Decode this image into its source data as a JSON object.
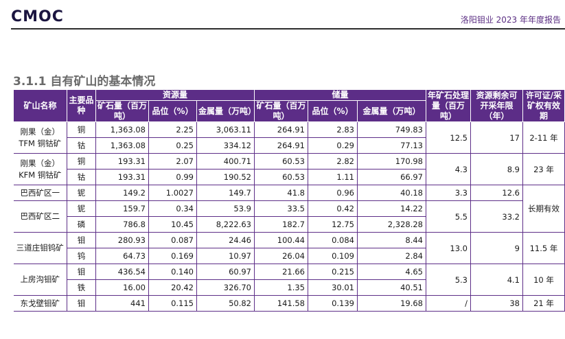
{
  "header": {
    "logo_text": "CMOC",
    "report_title": "洛阳钼业 2023 年年度报告"
  },
  "section": {
    "title": "3.1.1 自有矿山的基本情况"
  },
  "table": {
    "headers": {
      "mine_name": "矿山名称",
      "main_product": "主要品种",
      "resource_group": "资源量",
      "reserve_group": "储量",
      "annual_processing": "年矿石处理量（百万吨）",
      "remaining_life": "资源剩余可开采年限（年）",
      "license": "许可证/采矿权有效期",
      "ore": "矿石量（百万吨）",
      "grade": "品位（%）",
      "metal": "金属量（万吨）"
    },
    "mines": [
      {
        "name": "刚果（金）TFM 铜钴矿",
        "processing": "12.5",
        "life": "17",
        "license": "2-11 年",
        "rows": [
          {
            "product": "铜",
            "res_ore": "1,363.08",
            "res_grade": "2.25",
            "res_metal": "3,063.11",
            "rsv_ore": "264.91",
            "rsv_grade": "2.83",
            "rsv_metal": "749.83"
          },
          {
            "product": "钴",
            "res_ore": "1,363.08",
            "res_grade": "0.25",
            "res_metal": "334.12",
            "rsv_ore": "264.91",
            "rsv_grade": "0.29",
            "rsv_metal": "77.13"
          }
        ]
      },
      {
        "name": "刚果（金）KFM 铜钴矿",
        "processing": "4.3",
        "life": "8.9",
        "license": "23 年",
        "rows": [
          {
            "product": "铜",
            "res_ore": "193.31",
            "res_grade": "2.07",
            "res_metal": "400.71",
            "rsv_ore": "60.53",
            "rsv_grade": "2.82",
            "rsv_metal": "170.98"
          },
          {
            "product": "钴",
            "res_ore": "193.31",
            "res_grade": "0.99",
            "res_metal": "190.52",
            "rsv_ore": "60.53",
            "rsv_grade": "1.11",
            "rsv_metal": "66.97"
          }
        ]
      },
      {
        "name": "巴西矿区一",
        "processing": "3.3",
        "life": "12.6",
        "license": "长期有效",
        "rows": [
          {
            "product": "铌",
            "res_ore": "149.2",
            "res_grade": "1.0027",
            "res_metal": "149.7",
            "rsv_ore": "41.8",
            "rsv_grade": "0.96",
            "rsv_metal": "40.18"
          }
        ]
      },
      {
        "name": "巴西矿区二",
        "processing": "5.5",
        "life": "33.2",
        "rows": [
          {
            "product": "铌",
            "res_ore": "159.7",
            "res_grade": "0.34",
            "res_metal": "53.9",
            "rsv_ore": "33.5",
            "rsv_grade": "0.42",
            "rsv_metal": "14.22"
          },
          {
            "product": "磷",
            "res_ore": "786.8",
            "res_grade": "10.45",
            "res_metal": "8,222.63",
            "rsv_ore": "182.7",
            "rsv_grade": "12.75",
            "rsv_metal": "2,328.28"
          }
        ]
      },
      {
        "name": "三道庄钼钨矿",
        "processing": "13.0",
        "life": "9",
        "license": "11.5 年",
        "rows": [
          {
            "product": "钼",
            "res_ore": "280.93",
            "res_grade": "0.087",
            "res_metal": "24.46",
            "rsv_ore": "100.44",
            "rsv_grade": "0.084",
            "rsv_metal": "8.44"
          },
          {
            "product": "钨",
            "res_ore": "64.73",
            "res_grade": "0.169",
            "res_metal": "10.97",
            "rsv_ore": "26.04",
            "rsv_grade": "0.109",
            "rsv_metal": "2.84"
          }
        ]
      },
      {
        "name": "上房沟钼矿",
        "processing": "5.3",
        "life": "4.1",
        "license": "10 年",
        "rows": [
          {
            "product": "钼",
            "res_ore": "436.54",
            "res_grade": "0.140",
            "res_metal": "60.97",
            "rsv_ore": "21.66",
            "rsv_grade": "0.215",
            "rsv_metal": "4.65"
          },
          {
            "product": "铁",
            "res_ore": "16.00",
            "res_grade": "20.42",
            "res_metal": "326.70",
            "rsv_ore": "1.35",
            "rsv_grade": "30.01",
            "rsv_metal": "40.51"
          }
        ]
      },
      {
        "name": "东戈壁钼矿",
        "processing": "/",
        "life": "38",
        "license": "21 年",
        "rows": [
          {
            "product": "钼",
            "res_ore": "441",
            "res_grade": "0.115",
            "res_metal": "50.82",
            "rsv_ore": "141.58",
            "rsv_grade": "0.139",
            "rsv_metal": "19.68"
          }
        ]
      }
    ]
  }
}
